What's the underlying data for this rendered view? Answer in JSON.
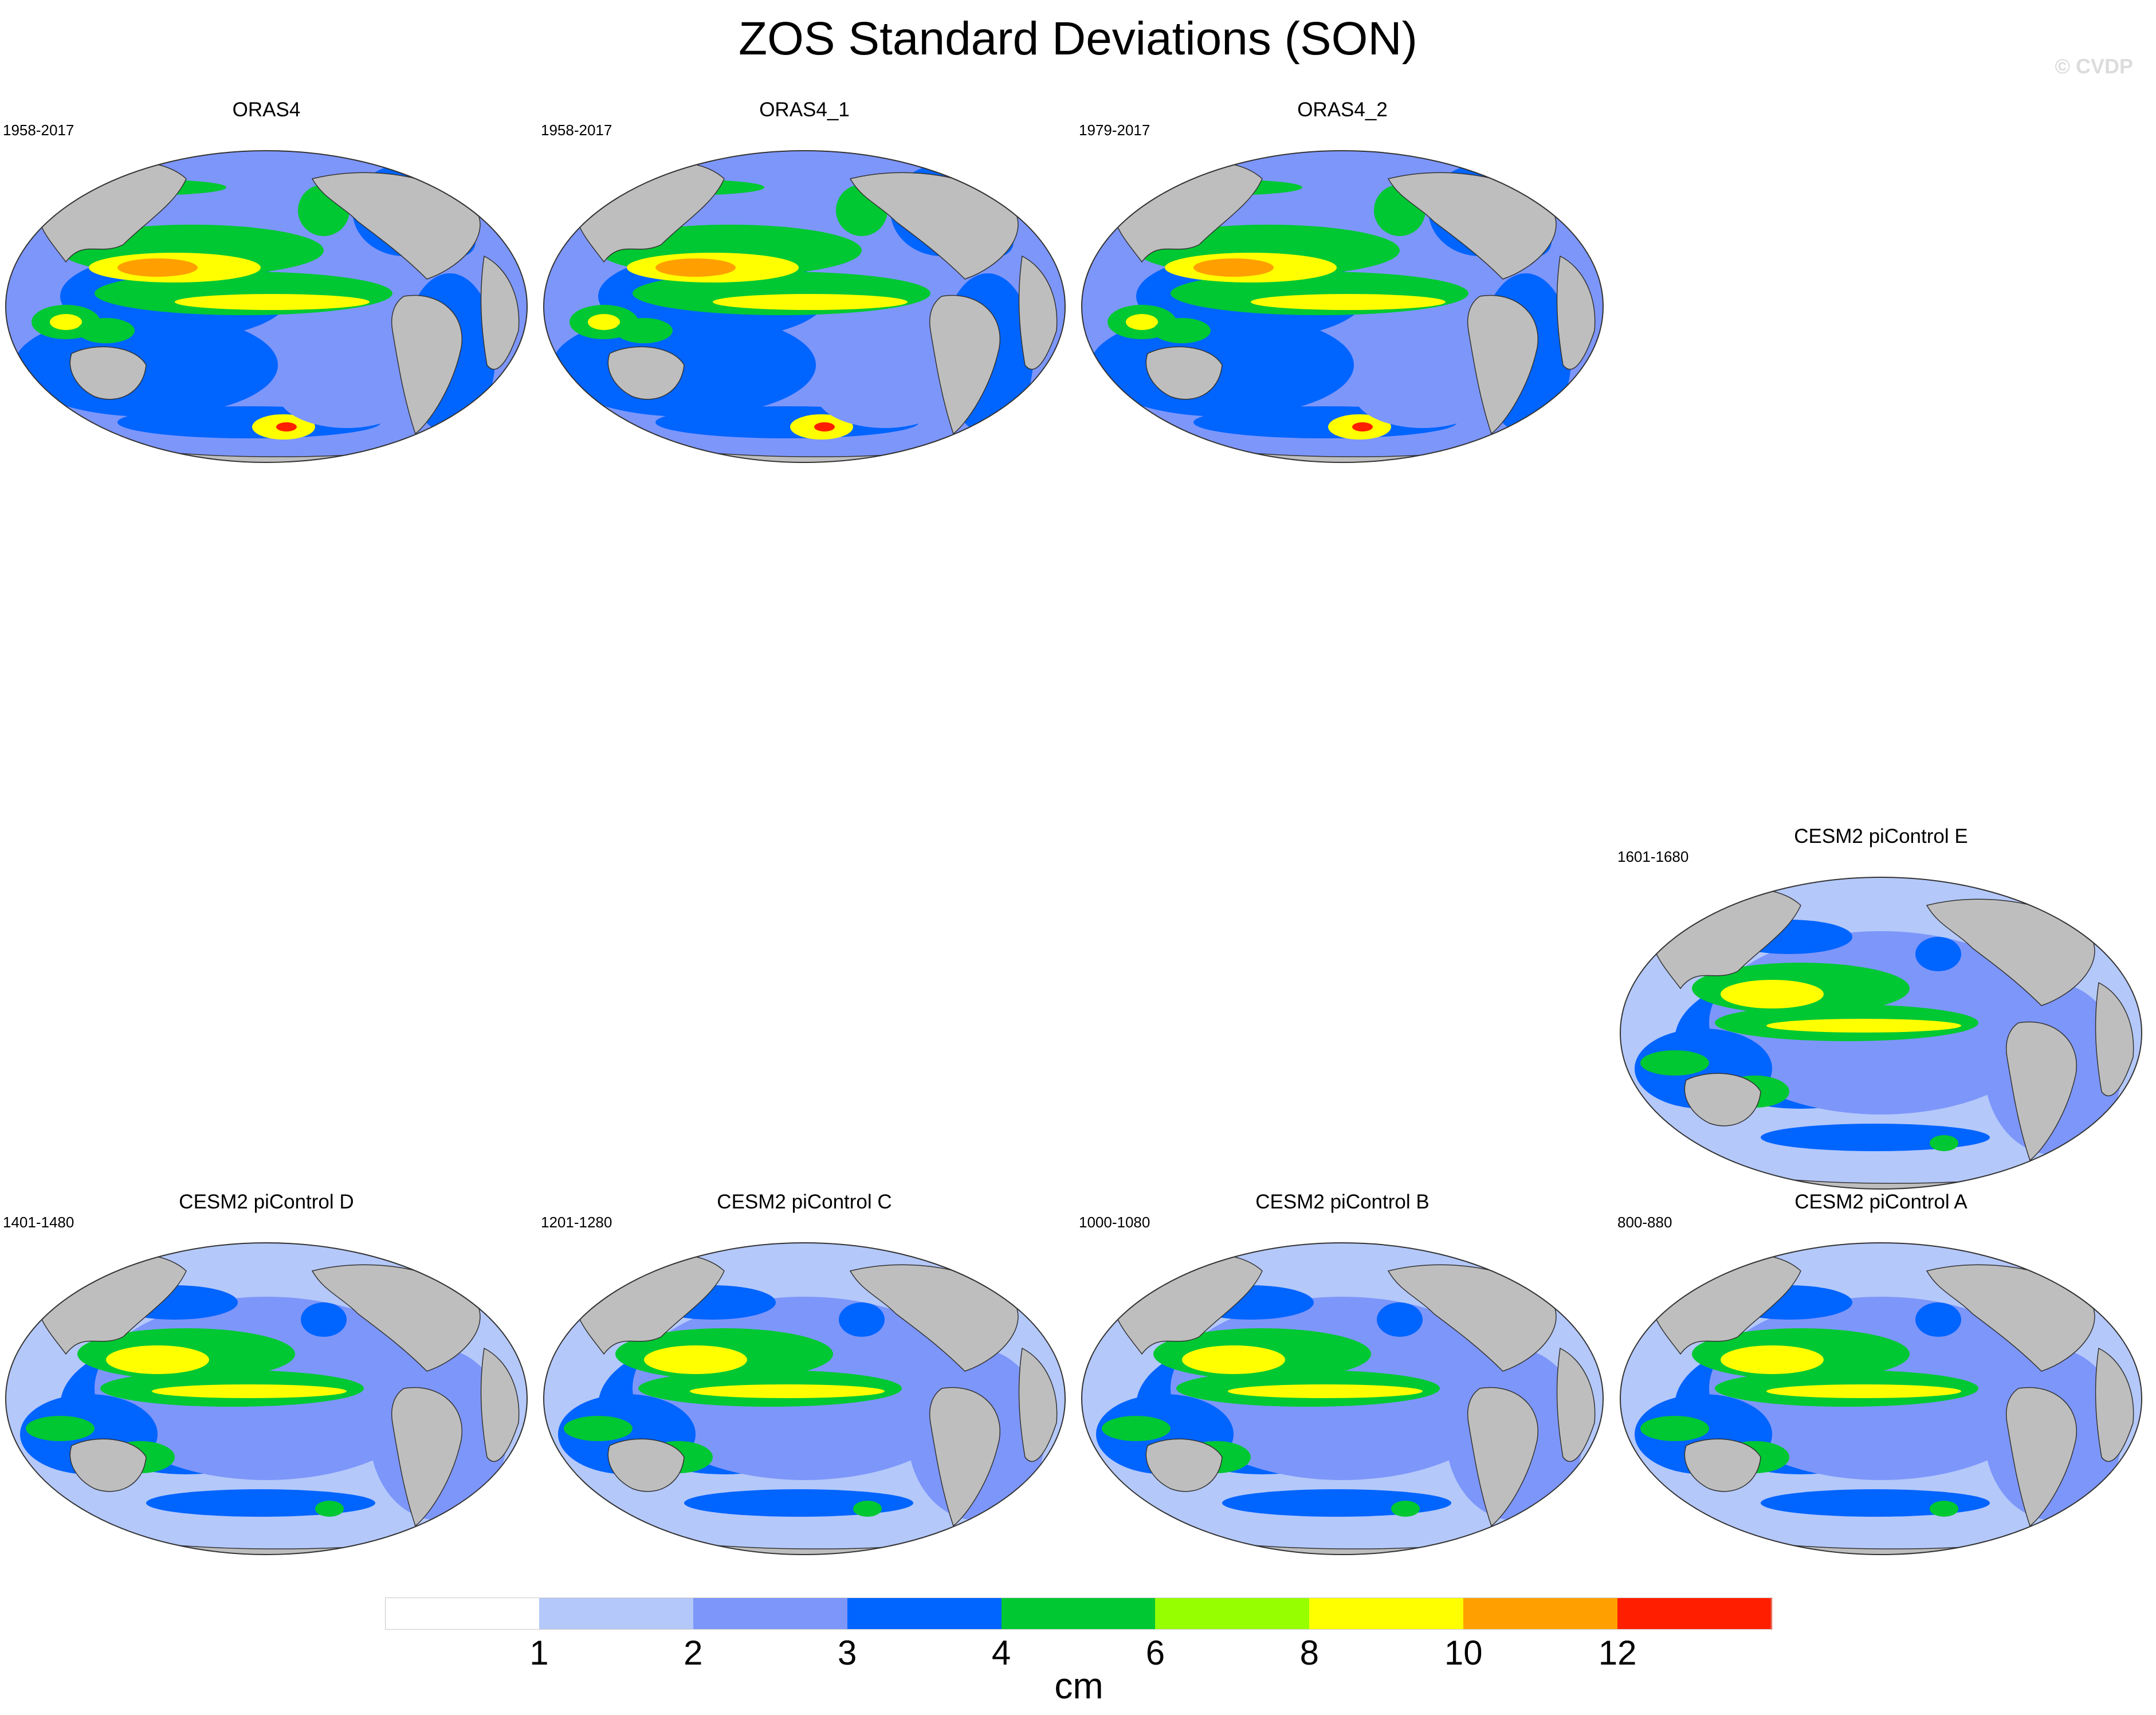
{
  "title": "ZOS Standard Deviations (SON)",
  "watermark": "© CVDP",
  "panels": [
    {
      "title": "ORAS4",
      "years": "1958-2017",
      "style": "obs",
      "col": 0,
      "row": 0
    },
    {
      "title": "ORAS4_1",
      "years": "1958-2017",
      "style": "obs",
      "col": 1,
      "row": 0
    },
    {
      "title": "ORAS4_2",
      "years": "1979-2017",
      "style": "obs",
      "col": 2,
      "row": 0
    },
    {
      "title": "CESM2 piControl E",
      "years": "1601-1680",
      "style": "model",
      "col": 3,
      "row": 1
    },
    {
      "title": "CESM2 piControl D",
      "years": "1401-1480",
      "style": "model",
      "col": 0,
      "row": 2
    },
    {
      "title": "CESM2 piControl C",
      "years": "1201-1280",
      "style": "model",
      "col": 1,
      "row": 2
    },
    {
      "title": "CESM2 piControl B",
      "years": "1000-1080",
      "style": "model",
      "col": 2,
      "row": 2
    },
    {
      "title": "CESM2 piControl A",
      "years": "800-880",
      "style": "model",
      "col": 3,
      "row": 2
    }
  ],
  "colorbar": {
    "units": "cm",
    "labels": [
      "1",
      "2",
      "3",
      "4",
      "6",
      "8",
      "10",
      "12"
    ],
    "colors": [
      "#ffffff",
      "#b4c8fa",
      "#7d96fa",
      "#0064ff",
      "#00c832",
      "#96ff00",
      "#ffff00",
      "#ffa000",
      "#ff1e00"
    ]
  },
  "map_colors": {
    "land": "#bebebe",
    "outline": "#333333"
  }
}
